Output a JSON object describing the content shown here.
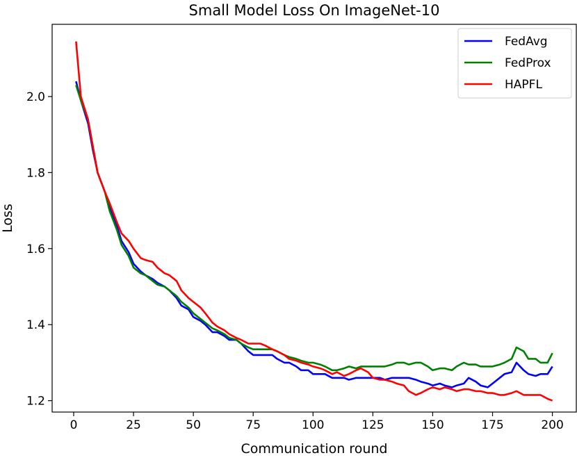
{
  "chart_data": {
    "type": "line",
    "title": "Small Model Loss On ImageNet-10",
    "xlabel": "Communication round",
    "ylabel": "Loss",
    "xlim": [
      -9,
      210
    ],
    "ylim": [
      1.17,
      2.19
    ],
    "xticks": [
      0,
      25,
      50,
      75,
      100,
      125,
      150,
      175,
      200
    ],
    "yticks": [
      1.2,
      1.4,
      1.6,
      1.8,
      2.0
    ],
    "xtick_labels": [
      "0",
      "25",
      "50",
      "75",
      "100",
      "125",
      "150",
      "175",
      "200"
    ],
    "ytick_labels": [
      "1.2",
      "1.4",
      "1.6",
      "1.8",
      "2.0"
    ],
    "grid": false,
    "legend_position": "top-right",
    "x": [
      1,
      3,
      6,
      8,
      10,
      13,
      15,
      18,
      20,
      23,
      25,
      28,
      30,
      33,
      35,
      38,
      40,
      43,
      45,
      48,
      50,
      53,
      55,
      58,
      60,
      63,
      65,
      68,
      70,
      73,
      75,
      78,
      80,
      83,
      85,
      88,
      90,
      93,
      95,
      98,
      100,
      103,
      105,
      108,
      110,
      113,
      115,
      118,
      120,
      123,
      125,
      128,
      130,
      133,
      135,
      138,
      140,
      143,
      145,
      148,
      150,
      153,
      155,
      158,
      160,
      163,
      165,
      168,
      170,
      173,
      175,
      178,
      180,
      183,
      185,
      188,
      190,
      193,
      195,
      198,
      200
    ],
    "series": [
      {
        "name": "FedAvg",
        "color": "#0000ff",
        "values": [
          2.04,
          1.99,
          1.93,
          1.86,
          1.8,
          1.75,
          1.71,
          1.66,
          1.62,
          1.59,
          1.56,
          1.54,
          1.53,
          1.52,
          1.51,
          1.5,
          1.49,
          1.47,
          1.45,
          1.44,
          1.42,
          1.41,
          1.4,
          1.38,
          1.38,
          1.37,
          1.36,
          1.36,
          1.35,
          1.33,
          1.32,
          1.32,
          1.32,
          1.32,
          1.31,
          1.3,
          1.3,
          1.29,
          1.28,
          1.28,
          1.27,
          1.27,
          1.27,
          1.26,
          1.26,
          1.26,
          1.255,
          1.26,
          1.26,
          1.26,
          1.26,
          1.26,
          1.255,
          1.26,
          1.26,
          1.26,
          1.26,
          1.255,
          1.25,
          1.245,
          1.24,
          1.245,
          1.24,
          1.235,
          1.24,
          1.245,
          1.26,
          1.25,
          1.24,
          1.235,
          1.245,
          1.26,
          1.27,
          1.275,
          1.3,
          1.28,
          1.27,
          1.265,
          1.27,
          1.27,
          1.29
        ]
      },
      {
        "name": "FedProx",
        "color": "#008000",
        "values": [
          2.03,
          1.99,
          1.94,
          1.87,
          1.8,
          1.75,
          1.7,
          1.65,
          1.61,
          1.58,
          1.55,
          1.535,
          1.53,
          1.515,
          1.505,
          1.5,
          1.49,
          1.475,
          1.46,
          1.445,
          1.43,
          1.415,
          1.405,
          1.39,
          1.385,
          1.375,
          1.365,
          1.36,
          1.35,
          1.34,
          1.335,
          1.335,
          1.335,
          1.335,
          1.33,
          1.32,
          1.315,
          1.31,
          1.305,
          1.3,
          1.3,
          1.295,
          1.29,
          1.28,
          1.28,
          1.285,
          1.29,
          1.285,
          1.29,
          1.29,
          1.29,
          1.29,
          1.29,
          1.295,
          1.3,
          1.3,
          1.295,
          1.3,
          1.3,
          1.29,
          1.28,
          1.285,
          1.285,
          1.28,
          1.29,
          1.3,
          1.295,
          1.295,
          1.29,
          1.29,
          1.29,
          1.295,
          1.3,
          1.31,
          1.34,
          1.33,
          1.31,
          1.31,
          1.3,
          1.3,
          1.325
        ]
      },
      {
        "name": "HAPFL",
        "color": "#ff0000",
        "values": [
          2.145,
          2.0,
          1.94,
          1.87,
          1.8,
          1.75,
          1.72,
          1.67,
          1.64,
          1.62,
          1.6,
          1.575,
          1.57,
          1.565,
          1.55,
          1.535,
          1.53,
          1.515,
          1.49,
          1.47,
          1.46,
          1.445,
          1.43,
          1.405,
          1.395,
          1.385,
          1.375,
          1.365,
          1.36,
          1.35,
          1.35,
          1.35,
          1.345,
          1.335,
          1.33,
          1.32,
          1.31,
          1.305,
          1.3,
          1.295,
          1.29,
          1.285,
          1.28,
          1.27,
          1.275,
          1.265,
          1.27,
          1.28,
          1.285,
          1.275,
          1.26,
          1.255,
          1.255,
          1.25,
          1.245,
          1.24,
          1.225,
          1.215,
          1.22,
          1.23,
          1.235,
          1.23,
          1.235,
          1.23,
          1.225,
          1.23,
          1.23,
          1.225,
          1.225,
          1.22,
          1.22,
          1.215,
          1.215,
          1.22,
          1.225,
          1.215,
          1.215,
          1.215,
          1.215,
          1.205,
          1.2
        ]
      }
    ]
  }
}
